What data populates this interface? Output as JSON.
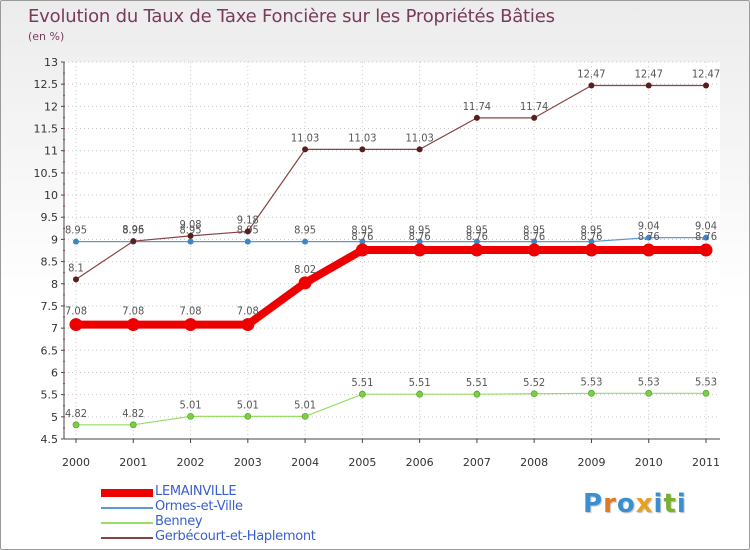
{
  "chart_data": {
    "type": "line",
    "title": "Evolution du Taux de Taxe Foncière sur les Propriétés Bâties",
    "subtitle": "(en %)",
    "x": [
      "2000",
      "2001",
      "2002",
      "2003",
      "2004",
      "2005",
      "2006",
      "2007",
      "2008",
      "2009",
      "2010",
      "2011"
    ],
    "ylim": [
      4.5,
      13
    ],
    "yticks": [
      "4.5",
      "5",
      "5.5",
      "6",
      "6.5",
      "7",
      "7.5",
      "8",
      "8.5",
      "9",
      "9.5",
      "10",
      "10.5",
      "11",
      "11.5",
      "12",
      "12.5",
      "13"
    ],
    "series": [
      {
        "name": "LEMAINVILLE",
        "color": "#ee0000",
        "values": [
          7.08,
          7.08,
          7.08,
          7.08,
          8.02,
          8.76,
          8.76,
          8.76,
          8.76,
          8.76,
          8.76,
          8.76
        ],
        "labels": [
          "7.08",
          "7.08",
          "7.08",
          "7.08",
          "8.02",
          "8.76",
          "8.76",
          "8.76",
          "8.76",
          "8.76",
          "8.76",
          "8.76"
        ]
      },
      {
        "name": "Ormes-et-Ville",
        "color": "#5b9bd5",
        "values": [
          8.95,
          8.95,
          8.95,
          8.95,
          8.95,
          8.95,
          8.95,
          8.95,
          8.95,
          8.95,
          9.04,
          9.04
        ],
        "labels": [
          "8.95",
          "8.95",
          "8.95",
          "8.95",
          "8.95",
          "8.95",
          "8.95",
          "8.95",
          "8.95",
          "8.95",
          "9.04",
          "9.04"
        ]
      },
      {
        "name": "Benney",
        "color": "#99dd66",
        "values": [
          4.82,
          4.82,
          5.01,
          5.01,
          5.01,
          5.51,
          5.51,
          5.51,
          5.52,
          5.53,
          5.53,
          5.53
        ],
        "labels": [
          "4.82",
          "4.82",
          "5.01",
          "5.01",
          "5.01",
          "5.51",
          "5.51",
          "5.51",
          "5.52",
          "5.53",
          "5.53",
          "5.53"
        ]
      },
      {
        "name": "Gerbécourt-et-Haplemont",
        "color": "#884444",
        "values": [
          8.1,
          8.96,
          9.08,
          9.18,
          11.03,
          11.03,
          11.03,
          11.74,
          11.74,
          12.47,
          12.47,
          12.47
        ],
        "labels": [
          "8.1",
          "8.96",
          "9.08",
          "9.18",
          "11.03",
          "11.03",
          "11.03",
          "11.74",
          "11.74",
          "12.47",
          "12.47",
          "12.47"
        ]
      }
    ]
  },
  "legend": [
    {
      "label": "LEMAINVILLE",
      "color": "#ee0000"
    },
    {
      "label": "Ormes-et-Ville",
      "color": "#5b9bd5"
    },
    {
      "label": "Benney",
      "color": "#99dd66"
    },
    {
      "label": "Gerbécourt-et-Haplemont",
      "color": "#884444"
    }
  ],
  "logo": {
    "text": "Proxiti",
    "letters": [
      "P",
      "r",
      "o",
      "x",
      "i",
      "t",
      "i"
    ],
    "colors": [
      "#3a8fd0",
      "#e07a20",
      "#3a8fd0",
      "#e8a020",
      "#3a8fd0",
      "#7ab030",
      "#3a8fd0"
    ]
  }
}
